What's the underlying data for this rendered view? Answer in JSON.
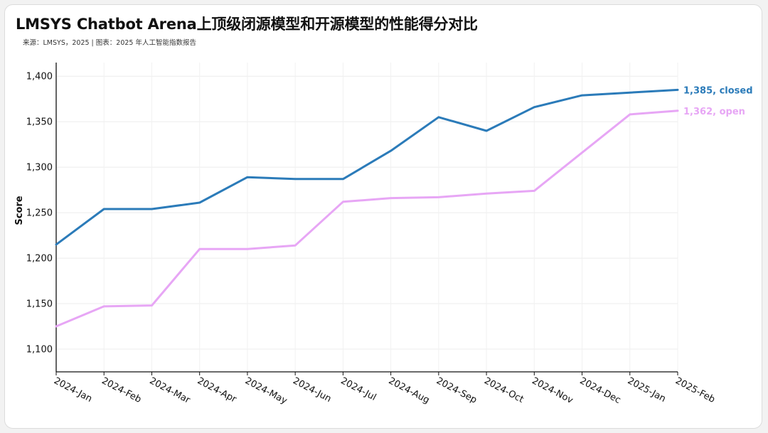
{
  "title": "LMSYS Chatbot Arena上顶级闭源模型和开源模型的性能得分对比",
  "subtitle": "来源：LMSYS，2025 | 图表：2025 年人工智能指数报告",
  "chart_data": {
    "type": "line",
    "categories": [
      "2024-Jan",
      "2024-Feb",
      "2024-Mar",
      "2024-Apr",
      "2024-May",
      "2024-Jun",
      "2024-Jul",
      "2024-Aug",
      "2024-Sep",
      "2024-Oct",
      "2024-Nov",
      "2024-Dec",
      "2025-Jan",
      "2025-Feb"
    ],
    "series": [
      {
        "name": "closed",
        "end_label": "1,385, closed",
        "color": "#2b7bb9",
        "values": [
          1215,
          1254,
          1254,
          1261,
          1289,
          1287,
          1287,
          1318,
          1355,
          1340,
          1366,
          1379,
          1382,
          1385
        ]
      },
      {
        "name": "open",
        "end_label": "1,362, open",
        "color": "#e7a6f5",
        "values": [
          1125,
          1147,
          1148,
          1210,
          1210,
          1214,
          1262,
          1266,
          1267,
          1271,
          1274,
          1316,
          1358,
          1362
        ]
      }
    ],
    "ylabel": "Score",
    "xlabel": "",
    "ylim": [
      1075,
      1415
    ],
    "yticks": [
      1100,
      1150,
      1200,
      1250,
      1300,
      1350,
      1400
    ],
    "ytick_labels": [
      "1,100",
      "1,150",
      "1,200",
      "1,250",
      "1,300",
      "1,350",
      "1,400"
    ],
    "grid": true
  }
}
